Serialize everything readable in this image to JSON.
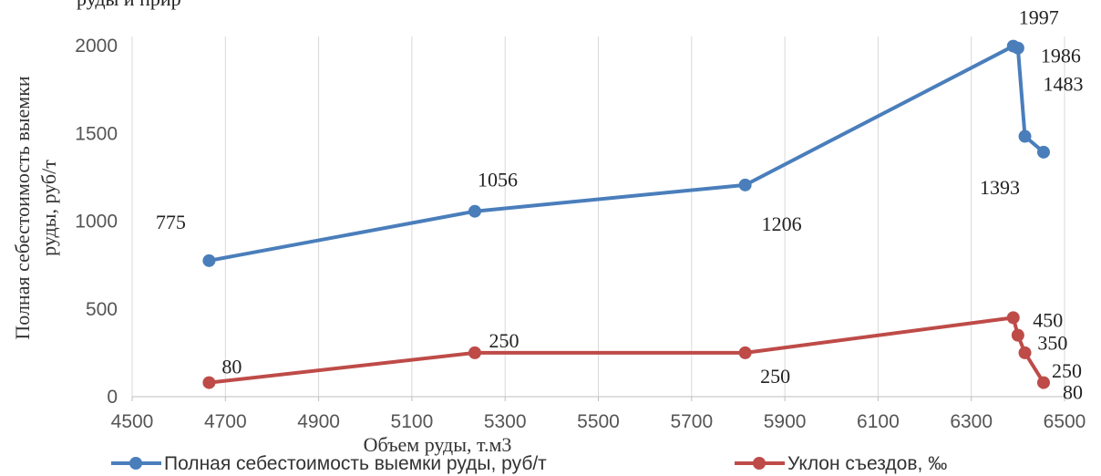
{
  "top_fragment": "руды и прир",
  "chart_data": {
    "type": "line",
    "xlabel": "Объем руды, т.м3",
    "ylabel_lines": [
      "Полная себестоимость выемки",
      "руды, руб/т"
    ],
    "xlim": [
      4500,
      6500
    ],
    "ylim": [
      0,
      2000
    ],
    "xticks": [
      4500,
      4700,
      4900,
      5100,
      5300,
      5500,
      5700,
      5900,
      6100,
      6300,
      6500
    ],
    "yticks": [
      0,
      500,
      1000,
      1500,
      2000
    ],
    "grid": "vertical",
    "legend_position": "bottom",
    "series": [
      {
        "name": "Полная себестоимость выемки руды, руб/т",
        "color": "#4A7EBB",
        "x": [
          4665,
          5235,
          5815,
          6390,
          6400,
          6415,
          6455
        ],
        "y": [
          775,
          1056,
          1206,
          1997,
          1986,
          1483,
          1393
        ],
        "labels": [
          "775",
          "1056",
          "1206",
          "1997",
          "1986",
          "1483",
          "1393"
        ]
      },
      {
        "name": "Уклон съездов, ‰",
        "color": "#BE4B48",
        "x": [
          4665,
          5235,
          5815,
          6390,
          6400,
          6415,
          6455
        ],
        "y": [
          80,
          250,
          250,
          450,
          350,
          250,
          80
        ],
        "labels": [
          "80",
          "250",
          "250",
          "450",
          "350",
          "250",
          "80"
        ]
      }
    ]
  }
}
